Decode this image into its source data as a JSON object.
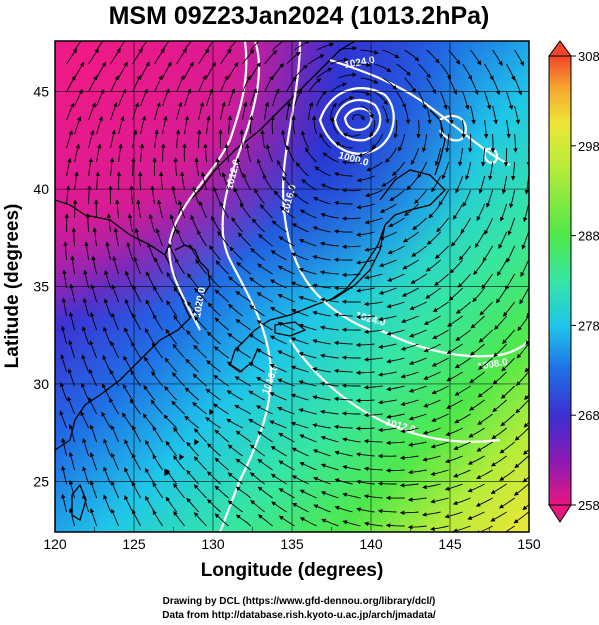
{
  "title": "MSM 09Z23Jan2024 (1013.2hPa)",
  "x_axis": {
    "label": "Longitude (degrees)",
    "ticks": [
      "120",
      "125",
      "130",
      "135",
      "140",
      "145",
      "150"
    ],
    "range": [
      120,
      150
    ]
  },
  "y_axis": {
    "label": "Latitude  (degrees)",
    "ticks": [
      "25",
      "30",
      "35",
      "40",
      "45"
    ],
    "range": [
      22.4,
      47.6
    ]
  },
  "colorbar": {
    "ticks": [
      "308",
      "298",
      "288",
      "278",
      "268",
      "258"
    ],
    "range": [
      258,
      308
    ],
    "colors": [
      "#e8177e",
      "#8a1ab5",
      "#3b2fd0",
      "#1f6fe6",
      "#1fc6e8",
      "#36e6a3",
      "#4fe84a",
      "#b6ec3a",
      "#eee637",
      "#f7a52f",
      "#f0452a"
    ]
  },
  "contour_labels": [
    "1024.0",
    "1000.0",
    "1012.0",
    "1016.0",
    "1020.0",
    "1024.0",
    "1016.0",
    "1008.0",
    "1012.0"
  ],
  "credits": {
    "line1": "Drawing by DCL (https://www.gfd-dennou.org/library/dcl/)",
    "line2": "Data from http://database.rish.kyoto-u.ac.jp/arch/jmadata/"
  },
  "colors": {
    "land_outline": "#000000",
    "contour": "#ffffff",
    "wind_vector": "#000000",
    "grid": "#000000"
  },
  "icons": [
    "wind-vector-arrow",
    "isobar-contour",
    "coastline"
  ]
}
